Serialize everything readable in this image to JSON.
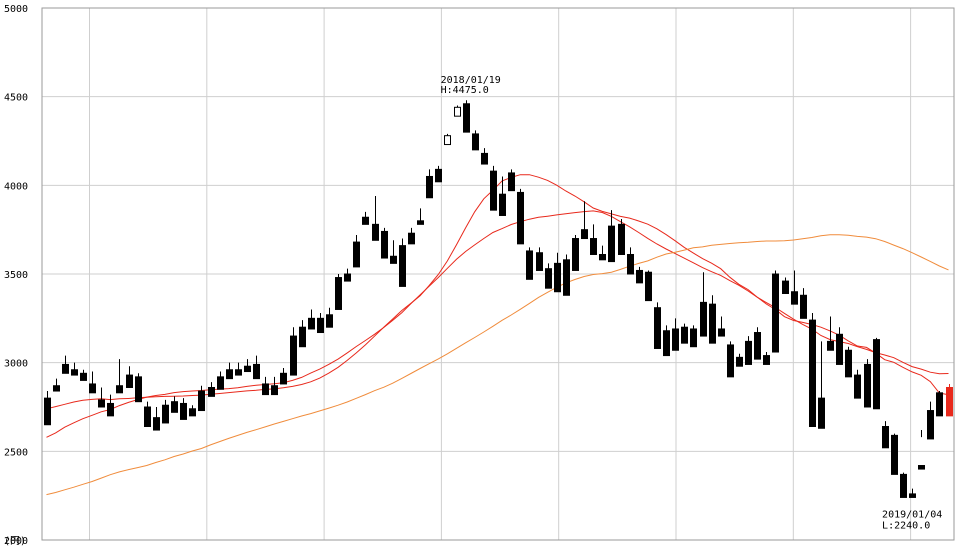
{
  "chart_data": {
    "type": "candlestick",
    "unit": "(円)",
    "ylim": [
      2000,
      5000
    ],
    "y_ticks": [
      "2000",
      "2500",
      "3000",
      "3500",
      "4000",
      "4500",
      "5000"
    ],
    "grid": true,
    "annotations": {
      "high": {
        "date": "2018/01/19",
        "label": "H:4475.0",
        "value": 4475.0
      },
      "low": {
        "date": "2019/01/04",
        "label": "L:2240.0",
        "value": 2240.0
      }
    },
    "candles": [
      [
        2800,
        2840,
        2660,
        2650
      ],
      [
        2870,
        2910,
        2850,
        2840
      ],
      [
        2990,
        3040,
        2940,
        2940
      ],
      [
        2960,
        3000,
        2930,
        2930
      ],
      [
        2940,
        2960,
        2910,
        2900
      ],
      [
        2880,
        2950,
        2850,
        2830
      ],
      [
        2790,
        2860,
        2760,
        2750
      ],
      [
        2770,
        2820,
        2710,
        2700
      ],
      [
        2870,
        3020,
        2850,
        2830
      ],
      [
        2930,
        2980,
        2870,
        2860
      ],
      [
        2920,
        2940,
        2800,
        2780
      ],
      [
        2750,
        2780,
        2650,
        2640
      ],
      [
        2690,
        2750,
        2640,
        2620
      ],
      [
        2760,
        2790,
        2670,
        2660
      ],
      [
        2780,
        2810,
        2730,
        2720
      ],
      [
        2770,
        2800,
        2690,
        2680
      ],
      [
        2740,
        2760,
        2710,
        2700
      ],
      [
        2840,
        2870,
        2740,
        2730
      ],
      [
        2860,
        2890,
        2820,
        2810
      ],
      [
        2920,
        2950,
        2860,
        2850
      ],
      [
        2960,
        3000,
        2920,
        2910
      ],
      [
        2960,
        3000,
        2940,
        2930
      ],
      [
        2980,
        3020,
        2960,
        2950
      ],
      [
        2990,
        3040,
        2920,
        2910
      ],
      [
        2880,
        2920,
        2830,
        2820
      ],
      [
        2870,
        2920,
        2840,
        2820
      ],
      [
        2940,
        2970,
        2890,
        2880
      ],
      [
        3150,
        3200,
        2940,
        2930
      ],
      [
        3200,
        3240,
        3100,
        3090
      ],
      [
        3250,
        3300,
        3200,
        3190
      ],
      [
        3250,
        3280,
        3200,
        3170
      ],
      [
        3270,
        3310,
        3220,
        3200
      ],
      [
        3480,
        3500,
        3310,
        3300
      ],
      [
        3500,
        3530,
        3470,
        3460
      ],
      [
        3680,
        3720,
        3550,
        3540
      ],
      [
        3820,
        3850,
        3790,
        3780
      ],
      [
        3780,
        3940,
        3700,
        3690
      ],
      [
        3740,
        3760,
        3600,
        3590
      ],
      [
        3600,
        3690,
        3570,
        3560
      ],
      [
        3660,
        3700,
        3600,
        3430
      ],
      [
        3730,
        3760,
        3680,
        3670
      ],
      [
        3800,
        3870,
        3790,
        3780
      ],
      [
        4050,
        4090,
        3940,
        3930
      ],
      [
        4090,
        4110,
        4030,
        4020
      ],
      [
        4230,
        4270,
        4290,
        4280
      ],
      [
        4390,
        4410,
        4450,
        4440
      ],
      [
        4460,
        4480,
        4375,
        4300
      ],
      [
        4290,
        4310,
        4240,
        4200
      ],
      [
        4180,
        4210,
        4120,
        4120
      ],
      [
        4080,
        4110,
        3940,
        3860
      ],
      [
        3950,
        4050,
        3890,
        3830
      ],
      [
        4070,
        4090,
        3980,
        3970
      ],
      [
        3960,
        3980,
        3700,
        3670
      ],
      [
        3630,
        3650,
        3580,
        3470
      ],
      [
        3620,
        3650,
        3540,
        3520
      ],
      [
        3530,
        3560,
        3440,
        3420
      ],
      [
        3560,
        3620,
        3410,
        3400
      ],
      [
        3580,
        3610,
        3420,
        3380
      ],
      [
        3700,
        3720,
        3600,
        3520
      ],
      [
        3750,
        3910,
        3710,
        3700
      ],
      [
        3700,
        3780,
        3620,
        3610
      ],
      [
        3610,
        3660,
        3590,
        3580
      ],
      [
        3770,
        3860,
        3600,
        3570
      ],
      [
        3780,
        3810,
        3620,
        3610
      ],
      [
        3610,
        3650,
        3520,
        3500
      ],
      [
        3520,
        3540,
        3490,
        3450
      ],
      [
        3510,
        3520,
        3360,
        3350
      ],
      [
        3310,
        3340,
        3100,
        3080
      ],
      [
        3180,
        3210,
        3100,
        3040
      ],
      [
        3190,
        3250,
        3180,
        3070
      ],
      [
        3200,
        3220,
        3180,
        3110
      ],
      [
        3190,
        3210,
        3170,
        3090
      ],
      [
        3340,
        3510,
        3160,
        3150
      ],
      [
        3330,
        3380,
        3120,
        3110
      ],
      [
        3190,
        3260,
        3160,
        3150
      ],
      [
        3100,
        3120,
        3000,
        2920
      ],
      [
        3030,
        3050,
        3000,
        2980
      ],
      [
        3120,
        3150,
        3000,
        2990
      ],
      [
        3170,
        3200,
        3030,
        3020
      ],
      [
        3040,
        3060,
        3000,
        2990
      ],
      [
        3500,
        3520,
        3070,
        3060
      ],
      [
        3460,
        3480,
        3400,
        3390
      ],
      [
        3400,
        3520,
        3340,
        3330
      ],
      [
        3380,
        3420,
        3270,
        3250
      ],
      [
        3240,
        3280,
        2690,
        2640
      ],
      [
        2800,
        3120,
        2690,
        2630
      ],
      [
        3120,
        3260,
        3090,
        3070
      ],
      [
        3160,
        3200,
        3000,
        2990
      ],
      [
        3070,
        3090,
        2930,
        2920
      ],
      [
        2930,
        2960,
        2850,
        2800
      ],
      [
        2990,
        3020,
        2950,
        2750
      ],
      [
        3130,
        3140,
        2760,
        2740
      ],
      [
        2640,
        2670,
        2580,
        2520
      ],
      [
        2590,
        2600,
        2380,
        2370
      ],
      [
        2370,
        2380,
        2260,
        2240
      ],
      [
        2260,
        2290,
        2250,
        2240
      ],
      [
        2420,
        2620,
        2580,
        2400
      ],
      [
        2730,
        2780,
        2580,
        2570
      ],
      [
        2830,
        2840,
        2780,
        2700
      ],
      [
        2860,
        2880,
        2720,
        2700
      ]
    ],
    "series": [
      {
        "color": "#e8291c",
        "values": [
          2740,
          2752,
          2765,
          2778,
          2788,
          2793,
          2796,
          2792,
          2796,
          2798,
          2802,
          2805,
          2808,
          2810,
          2811,
          2812,
          2815,
          2817,
          2822,
          2826,
          2831,
          2836,
          2841,
          2844,
          2849,
          2852,
          2858,
          2866,
          2877,
          2892,
          2913,
          2941,
          2974,
          3013,
          3055,
          3100,
          3149,
          3199,
          3246,
          3294,
          3335,
          3377,
          3435,
          3497,
          3574,
          3665,
          3760,
          3851,
          3924,
          3972,
          4025,
          4045,
          4060,
          4060,
          4046,
          4028,
          4001,
          3968,
          3940,
          3907,
          3872,
          3853,
          3839,
          3825,
          3815,
          3799,
          3781,
          3755,
          3722,
          3687,
          3650,
          3618,
          3587,
          3561,
          3530,
          3482,
          3442,
          3412,
          3370,
          3331,
          3300,
          3259,
          3238,
          3227,
          3215,
          3200,
          3179,
          3155,
          3123,
          3094,
          3086,
          3054,
          3017,
          3002,
          2974,
          2948,
          2929,
          2893,
          2829,
          2819
        ]
      },
      {
        "color": "#e8291c",
        "values": [
          2579,
          2604,
          2636,
          2661,
          2684,
          2703,
          2723,
          2736,
          2758,
          2776,
          2792,
          2806,
          2815,
          2821,
          2831,
          2837,
          2840,
          2843,
          2847,
          2851,
          2854,
          2858,
          2866,
          2873,
          2877,
          2881,
          2887,
          2900,
          2917,
          2941,
          2964,
          2991,
          3020,
          3055,
          3091,
          3125,
          3160,
          3198,
          3239,
          3282,
          3333,
          3382,
          3431,
          3480,
          3532,
          3583,
          3627,
          3664,
          3700,
          3734,
          3756,
          3779,
          3795,
          3809,
          3820,
          3826,
          3833,
          3840,
          3846,
          3852,
          3856,
          3847,
          3825,
          3795,
          3766,
          3734,
          3701,
          3669,
          3641,
          3615,
          3589,
          3563,
          3536,
          3513,
          3492,
          3463,
          3436,
          3404,
          3369,
          3339,
          3311,
          3278,
          3245,
          3216,
          3190,
          3153,
          3130,
          3119,
          3108,
          3090,
          3075,
          3057,
          3043,
          3028,
          3002,
          2978,
          2964,
          2946,
          2937,
          2939
        ]
      },
      {
        "color": "#f08c3c",
        "values": [
          2256,
          2268,
          2283,
          2298,
          2314,
          2330,
          2349,
          2368,
          2384,
          2397,
          2408,
          2420,
          2437,
          2452,
          2471,
          2485,
          2502,
          2516,
          2536,
          2555,
          2573,
          2590,
          2607,
          2622,
          2638,
          2654,
          2669,
          2684,
          2699,
          2713,
          2728,
          2744,
          2760,
          2778,
          2799,
          2820,
          2842,
          2861,
          2884,
          2911,
          2939,
          2967,
          2994,
          3021,
          3050,
          3081,
          3112,
          3142,
          3173,
          3205,
          3239,
          3269,
          3301,
          3334,
          3368,
          3397,
          3425,
          3450,
          3469,
          3486,
          3497,
          3502,
          3510,
          3526,
          3544,
          3560,
          3574,
          3595,
          3613,
          3623,
          3635,
          3648,
          3653,
          3662,
          3667,
          3672,
          3676,
          3679,
          3683,
          3686,
          3686,
          3687,
          3692,
          3699,
          3706,
          3716,
          3721,
          3721,
          3718,
          3712,
          3708,
          3699,
          3683,
          3663,
          3643,
          3620,
          3596,
          3571,
          3545,
          3523
        ]
      }
    ]
  }
}
